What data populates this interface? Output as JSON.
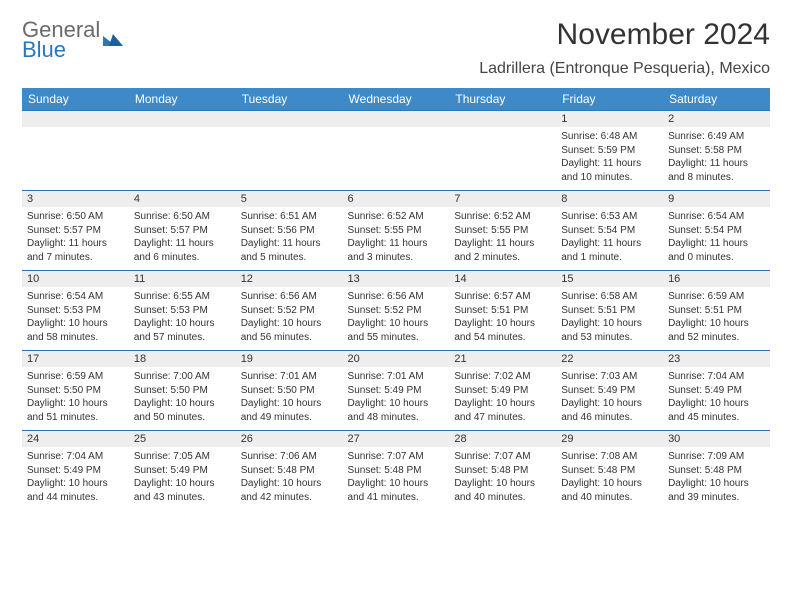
{
  "logo": {
    "word1": "General",
    "word2": "Blue"
  },
  "header": {
    "month_title": "November 2024",
    "location": "Ladrillera (Entronque Pesqueria), Mexico"
  },
  "colors": {
    "header_bg": "#3e89c7",
    "header_text": "#ffffff",
    "row_border": "#2a77bb",
    "daynum_bg": "#eeeeee",
    "text": "#333333",
    "logo_gray": "#6a6a6a",
    "logo_blue": "#2a77bb",
    "page_bg": "#ffffff"
  },
  "typography": {
    "month_title_pt": 30,
    "location_pt": 16,
    "day_header_pt": 12,
    "daynum_pt": 11,
    "body_pt": 10
  },
  "calendar": {
    "type": "table",
    "columns": [
      "Sunday",
      "Monday",
      "Tuesday",
      "Wednesday",
      "Thursday",
      "Friday",
      "Saturday"
    ],
    "weeks": [
      [
        null,
        null,
        null,
        null,
        null,
        {
          "n": "1",
          "sunrise": "Sunrise: 6:48 AM",
          "sunset": "Sunset: 5:59 PM",
          "daylight": "Daylight: 11 hours and 10 minutes."
        },
        {
          "n": "2",
          "sunrise": "Sunrise: 6:49 AM",
          "sunset": "Sunset: 5:58 PM",
          "daylight": "Daylight: 11 hours and 8 minutes."
        }
      ],
      [
        {
          "n": "3",
          "sunrise": "Sunrise: 6:50 AM",
          "sunset": "Sunset: 5:57 PM",
          "daylight": "Daylight: 11 hours and 7 minutes."
        },
        {
          "n": "4",
          "sunrise": "Sunrise: 6:50 AM",
          "sunset": "Sunset: 5:57 PM",
          "daylight": "Daylight: 11 hours and 6 minutes."
        },
        {
          "n": "5",
          "sunrise": "Sunrise: 6:51 AM",
          "sunset": "Sunset: 5:56 PM",
          "daylight": "Daylight: 11 hours and 5 minutes."
        },
        {
          "n": "6",
          "sunrise": "Sunrise: 6:52 AM",
          "sunset": "Sunset: 5:55 PM",
          "daylight": "Daylight: 11 hours and 3 minutes."
        },
        {
          "n": "7",
          "sunrise": "Sunrise: 6:52 AM",
          "sunset": "Sunset: 5:55 PM",
          "daylight": "Daylight: 11 hours and 2 minutes."
        },
        {
          "n": "8",
          "sunrise": "Sunrise: 6:53 AM",
          "sunset": "Sunset: 5:54 PM",
          "daylight": "Daylight: 11 hours and 1 minute."
        },
        {
          "n": "9",
          "sunrise": "Sunrise: 6:54 AM",
          "sunset": "Sunset: 5:54 PM",
          "daylight": "Daylight: 11 hours and 0 minutes."
        }
      ],
      [
        {
          "n": "10",
          "sunrise": "Sunrise: 6:54 AM",
          "sunset": "Sunset: 5:53 PM",
          "daylight": "Daylight: 10 hours and 58 minutes."
        },
        {
          "n": "11",
          "sunrise": "Sunrise: 6:55 AM",
          "sunset": "Sunset: 5:53 PM",
          "daylight": "Daylight: 10 hours and 57 minutes."
        },
        {
          "n": "12",
          "sunrise": "Sunrise: 6:56 AM",
          "sunset": "Sunset: 5:52 PM",
          "daylight": "Daylight: 10 hours and 56 minutes."
        },
        {
          "n": "13",
          "sunrise": "Sunrise: 6:56 AM",
          "sunset": "Sunset: 5:52 PM",
          "daylight": "Daylight: 10 hours and 55 minutes."
        },
        {
          "n": "14",
          "sunrise": "Sunrise: 6:57 AM",
          "sunset": "Sunset: 5:51 PM",
          "daylight": "Daylight: 10 hours and 54 minutes."
        },
        {
          "n": "15",
          "sunrise": "Sunrise: 6:58 AM",
          "sunset": "Sunset: 5:51 PM",
          "daylight": "Daylight: 10 hours and 53 minutes."
        },
        {
          "n": "16",
          "sunrise": "Sunrise: 6:59 AM",
          "sunset": "Sunset: 5:51 PM",
          "daylight": "Daylight: 10 hours and 52 minutes."
        }
      ],
      [
        {
          "n": "17",
          "sunrise": "Sunrise: 6:59 AM",
          "sunset": "Sunset: 5:50 PM",
          "daylight": "Daylight: 10 hours and 51 minutes."
        },
        {
          "n": "18",
          "sunrise": "Sunrise: 7:00 AM",
          "sunset": "Sunset: 5:50 PM",
          "daylight": "Daylight: 10 hours and 50 minutes."
        },
        {
          "n": "19",
          "sunrise": "Sunrise: 7:01 AM",
          "sunset": "Sunset: 5:50 PM",
          "daylight": "Daylight: 10 hours and 49 minutes."
        },
        {
          "n": "20",
          "sunrise": "Sunrise: 7:01 AM",
          "sunset": "Sunset: 5:49 PM",
          "daylight": "Daylight: 10 hours and 48 minutes."
        },
        {
          "n": "21",
          "sunrise": "Sunrise: 7:02 AM",
          "sunset": "Sunset: 5:49 PM",
          "daylight": "Daylight: 10 hours and 47 minutes."
        },
        {
          "n": "22",
          "sunrise": "Sunrise: 7:03 AM",
          "sunset": "Sunset: 5:49 PM",
          "daylight": "Daylight: 10 hours and 46 minutes."
        },
        {
          "n": "23",
          "sunrise": "Sunrise: 7:04 AM",
          "sunset": "Sunset: 5:49 PM",
          "daylight": "Daylight: 10 hours and 45 minutes."
        }
      ],
      [
        {
          "n": "24",
          "sunrise": "Sunrise: 7:04 AM",
          "sunset": "Sunset: 5:49 PM",
          "daylight": "Daylight: 10 hours and 44 minutes."
        },
        {
          "n": "25",
          "sunrise": "Sunrise: 7:05 AM",
          "sunset": "Sunset: 5:49 PM",
          "daylight": "Daylight: 10 hours and 43 minutes."
        },
        {
          "n": "26",
          "sunrise": "Sunrise: 7:06 AM",
          "sunset": "Sunset: 5:48 PM",
          "daylight": "Daylight: 10 hours and 42 minutes."
        },
        {
          "n": "27",
          "sunrise": "Sunrise: 7:07 AM",
          "sunset": "Sunset: 5:48 PM",
          "daylight": "Daylight: 10 hours and 41 minutes."
        },
        {
          "n": "28",
          "sunrise": "Sunrise: 7:07 AM",
          "sunset": "Sunset: 5:48 PM",
          "daylight": "Daylight: 10 hours and 40 minutes."
        },
        {
          "n": "29",
          "sunrise": "Sunrise: 7:08 AM",
          "sunset": "Sunset: 5:48 PM",
          "daylight": "Daylight: 10 hours and 40 minutes."
        },
        {
          "n": "30",
          "sunrise": "Sunrise: 7:09 AM",
          "sunset": "Sunset: 5:48 PM",
          "daylight": "Daylight: 10 hours and 39 minutes."
        }
      ]
    ]
  }
}
